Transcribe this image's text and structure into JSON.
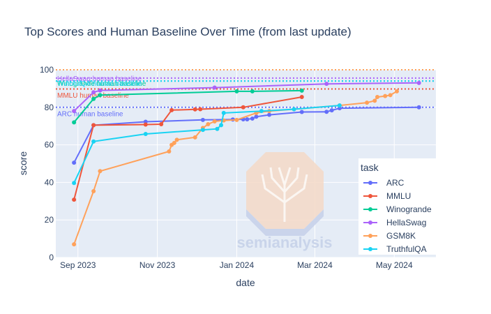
{
  "chart_data": {
    "type": "line",
    "title": "Top Scores and Human Baseline Over Time (from last update)",
    "xlabel": "date",
    "ylabel": "score",
    "xlim": [
      "2023-08-15",
      "2024-06-02"
    ],
    "ylim": [
      0,
      100
    ],
    "x_ticks": [
      {
        "date": "2023-09-01",
        "label": "Sep 2023"
      },
      {
        "date": "2023-11-01",
        "label": "Nov 2023"
      },
      {
        "date": "2024-01-01",
        "label": "Jan 2024"
      },
      {
        "date": "2024-03-01",
        "label": "Mar 2024"
      },
      {
        "date": "2024-05-01",
        "label": "May 2024"
      }
    ],
    "y_ticks": [
      0,
      20,
      40,
      60,
      80,
      100
    ],
    "legend_title": "task",
    "baselines": [
      {
        "label": "HellaSwag human baseline",
        "value": 95.6,
        "color": "#ab63fa"
      },
      {
        "label": "Winogrande human baseline",
        "value": 94.0,
        "color": "#00cc96"
      },
      {
        "label": "TruthfulQA human baseline",
        "value": 94.0,
        "color": "#19d3f3"
      },
      {
        "label": "GSM8K human baseline",
        "value": 100.0,
        "color": "#ffa15a"
      },
      {
        "label": "MMLU human baseline",
        "value": 89.8,
        "color": "#ef553b"
      },
      {
        "label": "ARC human baseline",
        "value": 80.0,
        "color": "#636efa"
      }
    ],
    "baseline_label_texts": [
      {
        "text": "HellaSwag human baseline",
        "color": "#ab63fa"
      },
      {
        "text": "Winogrande human baseline",
        "color": "#00cc96"
      },
      {
        "text": "TruthfulQA human baseline",
        "color": "#19d3f3"
      },
      {
        "text": "MMLU human baseline",
        "color": "#ef553b"
      },
      {
        "text": "ARC human baseline",
        "color": "#636efa"
      }
    ],
    "series": [
      {
        "name": "ARC",
        "color": "#636efa",
        "points": [
          [
            "2023-08-29",
            50.5
          ],
          [
            "2023-09-13",
            70.5
          ],
          [
            "2023-10-23",
            72.3
          ],
          [
            "2023-12-06",
            73.3
          ],
          [
            "2023-12-29",
            73.5
          ],
          [
            "2024-01-06",
            73.6
          ],
          [
            "2024-01-09",
            73.6
          ],
          [
            "2024-01-13",
            74.0
          ],
          [
            "2024-01-16",
            75.0
          ],
          [
            "2024-01-26",
            76.0
          ],
          [
            "2024-02-20",
            77.5
          ],
          [
            "2024-03-10",
            77.6
          ],
          [
            "2024-03-14",
            78.4
          ],
          [
            "2024-03-20",
            79.5
          ],
          [
            "2024-05-20",
            80.0
          ]
        ]
      },
      {
        "name": "MMLU",
        "color": "#ef553b",
        "points": [
          [
            "2023-08-29",
            30.8
          ],
          [
            "2023-09-13",
            70.5
          ],
          [
            "2023-10-23",
            70.8
          ],
          [
            "2023-11-04",
            71.0
          ],
          [
            "2023-11-12",
            78.5
          ],
          [
            "2023-11-30",
            78.9
          ],
          [
            "2023-12-04",
            79.0
          ],
          [
            "2024-01-06",
            80.0
          ],
          [
            "2024-02-20",
            85.5
          ]
        ]
      },
      {
        "name": "Winogrande",
        "color": "#00cc96",
        "points": [
          [
            "2023-08-29",
            72.0
          ],
          [
            "2023-09-13",
            84.5
          ],
          [
            "2023-09-18",
            86.5
          ],
          [
            "2024-01-01",
            88.5
          ],
          [
            "2024-01-13",
            88.5
          ],
          [
            "2024-02-20",
            88.9
          ]
        ]
      },
      {
        "name": "HellaSwag",
        "color": "#ab63fa",
        "points": [
          [
            "2023-08-29",
            78.0
          ],
          [
            "2023-09-13",
            88.0
          ],
          [
            "2023-09-18",
            89.0
          ],
          [
            "2023-12-15",
            90.5
          ],
          [
            "2024-03-10",
            92.5
          ],
          [
            "2024-05-20",
            93.0
          ]
        ]
      },
      {
        "name": "GSM8K",
        "color": "#ffa15a",
        "points": [
          [
            "2023-08-29",
            7.0
          ],
          [
            "2023-09-13",
            35.3
          ],
          [
            "2023-09-18",
            46.0
          ],
          [
            "2023-11-10",
            56.5
          ],
          [
            "2023-11-12",
            60.0
          ],
          [
            "2023-11-14",
            61.0
          ],
          [
            "2023-11-16",
            62.7
          ],
          [
            "2023-11-30",
            64.0
          ],
          [
            "2023-12-06",
            69.0
          ],
          [
            "2023-12-10",
            71.0
          ],
          [
            "2023-12-15",
            72.5
          ],
          [
            "2023-12-22",
            73.0
          ],
          [
            "2024-01-01",
            73.3
          ],
          [
            "2024-01-16",
            77.0
          ],
          [
            "2024-01-26",
            78.0
          ],
          [
            "2024-02-14",
            79.0
          ],
          [
            "2024-03-20",
            81.0
          ],
          [
            "2024-04-10",
            82.5
          ],
          [
            "2024-04-16",
            83.5
          ],
          [
            "2024-04-18",
            85.5
          ],
          [
            "2024-04-24",
            86.0
          ],
          [
            "2024-04-28",
            86.5
          ],
          [
            "2024-05-03",
            88.5
          ]
        ]
      },
      {
        "name": "TruthfulQA",
        "color": "#19d3f3",
        "points": [
          [
            "2023-08-29",
            39.7
          ],
          [
            "2023-09-13",
            61.8
          ],
          [
            "2023-10-23",
            65.8
          ],
          [
            "2023-12-06",
            68.0
          ],
          [
            "2023-12-17",
            68.5
          ],
          [
            "2023-12-20",
            70.5
          ],
          [
            "2023-12-22",
            77.0
          ],
          [
            "2024-01-20",
            78.0
          ],
          [
            "2024-02-14",
            79.0
          ],
          [
            "2024-03-20",
            81.0
          ]
        ]
      }
    ],
    "watermark": "semianalysis"
  }
}
